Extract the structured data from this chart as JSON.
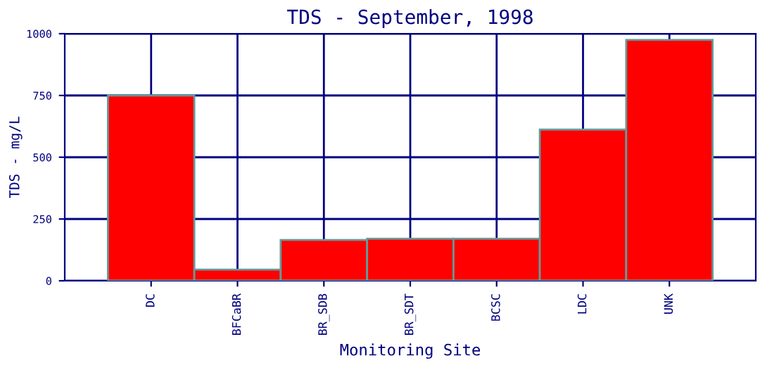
{
  "chart_data": {
    "type": "bar",
    "title": "TDS - September, 1998",
    "xlabel": "Monitoring Site",
    "ylabel": "TDS - mg/L",
    "categories": [
      "DC",
      "BFCaBR",
      "BR_SDB",
      "BR_SDT",
      "BCSC",
      "LDC",
      "UNK"
    ],
    "values": [
      750,
      45,
      165,
      170,
      170,
      612,
      975
    ],
    "color": "#ff0000",
    "ylim": [
      0,
      1000
    ],
    "yticks": [
      0,
      250,
      500,
      750,
      1000
    ],
    "grid": true
  }
}
